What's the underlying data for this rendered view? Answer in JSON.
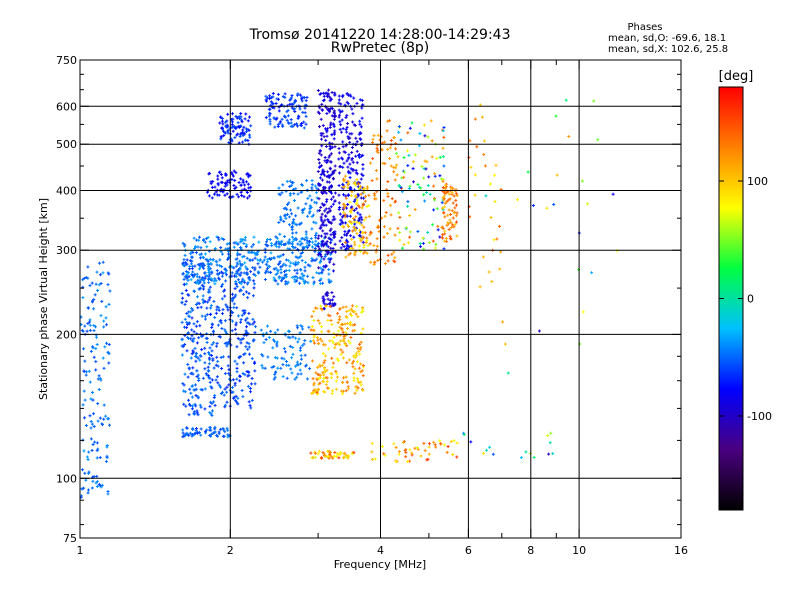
{
  "header": {
    "title_line1": "Tromsø 20141220 14:28:00-14:29:43",
    "title_line2": "RwPretec (8p)"
  },
  "phases": {
    "title": "Phases",
    "line_o": "mean, sd,O: -69.6, 18.1",
    "line_x": "mean, sd,X: 102.6, 25.8"
  },
  "colorbar": {
    "unit": "[deg]",
    "ticks": [
      {
        "value": 100,
        "label": "100"
      },
      {
        "value": 0,
        "label": "0"
      },
      {
        "value": -100,
        "label": "-100"
      }
    ],
    "range": [
      -180,
      180
    ],
    "colormap": [
      "#000000",
      "#4a0080",
      "#0000ff",
      "#00c0ff",
      "#00ff40",
      "#ffff00",
      "#ff8000",
      "#ff0000"
    ]
  },
  "chart_data": {
    "type": "scatter",
    "xlabel": "Frequency [MHz]",
    "ylabel": "Stationary phase Virtual Height [km]",
    "xscale": "log",
    "yscale": "log",
    "xlim": [
      1,
      16
    ],
    "ylim": [
      75,
      750
    ],
    "grid": true,
    "x_ticks": [
      {
        "value": 1,
        "label": "1"
      },
      {
        "value": 2,
        "label": "2"
      },
      {
        "value": 4,
        "label": "4"
      },
      {
        "value": 6,
        "label": "6"
      },
      {
        "value": 8,
        "label": "8"
      },
      {
        "value": 10,
        "label": "10"
      },
      {
        "value": 16,
        "label": "16"
      }
    ],
    "x_minor": [
      3,
      5,
      7,
      9
    ],
    "x_grid": [
      2,
      4,
      6,
      8,
      10
    ],
    "y_ticks": [
      {
        "value": 75,
        "label": "75"
      },
      {
        "value": 100,
        "label": "100"
      },
      {
        "value": 200,
        "label": "200"
      },
      {
        "value": 300,
        "label": "300"
      },
      {
        "value": 400,
        "label": "400"
      },
      {
        "value": 500,
        "label": "500"
      },
      {
        "value": 600,
        "label": "600"
      },
      {
        "value": 750,
        "label": "750"
      }
    ],
    "y_grid": [
      100,
      200,
      300,
      400,
      500,
      600
    ],
    "clusters": [
      {
        "f": [
          1.0,
          1.15
        ],
        "h": [
          90,
          290
        ],
        "phase": [
          -60,
          -35
        ],
        "n": 160
      },
      {
        "f": [
          1.6,
          1.85
        ],
        "h": [
          135,
          290
        ],
        "phase": [
          -70,
          -40
        ],
        "n": 260
      },
      {
        "f": [
          1.85,
          2.25
        ],
        "h": [
          140,
          280
        ],
        "phase": [
          -70,
          -45
        ],
        "n": 240
      },
      {
        "f": [
          1.6,
          2.0
        ],
        "h": [
          122,
          128
        ],
        "phase": [
          -65,
          -40
        ],
        "n": 60
      },
      {
        "f": [
          1.8,
          2.2
        ],
        "h": [
          385,
          440
        ],
        "phase": [
          -90,
          -70
        ],
        "n": 90
      },
      {
        "f": [
          1.9,
          2.2
        ],
        "h": [
          500,
          580
        ],
        "phase": [
          -80,
          -55
        ],
        "n": 90
      },
      {
        "f": [
          2.35,
          2.85
        ],
        "h": [
          540,
          640
        ],
        "phase": [
          -75,
          -50
        ],
        "n": 110
      },
      {
        "f": [
          2.3,
          2.9
        ],
        "h": [
          160,
          210
        ],
        "phase": [
          -55,
          -35
        ],
        "n": 90
      },
      {
        "f": [
          1.6,
          3.2
        ],
        "h": [
          255,
          320
        ],
        "phase": [
          -60,
          -30
        ],
        "n": 420
      },
      {
        "f": [
          2.5,
          3.0
        ],
        "h": [
          300,
          420
        ],
        "phase": [
          -55,
          -35
        ],
        "n": 120
      },
      {
        "f": [
          3.0,
          3.25
        ],
        "h": [
          270,
          650
        ],
        "phase": [
          -105,
          -80
        ],
        "n": 260
      },
      {
        "f": [
          3.3,
          3.7
        ],
        "h": [
          300,
          640
        ],
        "phase": [
          -100,
          -70
        ],
        "n": 220
      },
      {
        "f": [
          3.05,
          3.25
        ],
        "h": [
          225,
          245
        ],
        "phase": [
          -100,
          -85
        ],
        "n": 30
      },
      {
        "f": [
          3.35,
          3.8
        ],
        "h": [
          290,
          430
        ],
        "phase": [
          70,
          140
        ],
        "n": 110
      },
      {
        "f": [
          3.8,
          4.3
        ],
        "h": [
          280,
          560
        ],
        "phase": [
          110,
          150
        ],
        "n": 90
      },
      {
        "f": [
          4.3,
          5.4
        ],
        "h": [
          300,
          560
        ],
        "phase": [
          -100,
          150
        ],
        "n": 110
      },
      {
        "f": [
          5.3,
          5.7
        ],
        "h": [
          310,
          420
        ],
        "phase": [
          100,
          150
        ],
        "n": 80
      },
      {
        "f": [
          2.9,
          3.7
        ],
        "h": [
          150,
          230
        ],
        "phase": [
          70,
          140
        ],
        "n": 240
      },
      {
        "f": [
          2.9,
          3.6
        ],
        "h": [
          110,
          114
        ],
        "phase": [
          60,
          160
        ],
        "n": 50
      },
      {
        "f": [
          3.8,
          5.7
        ],
        "h": [
          108,
          120
        ],
        "phase": [
          70,
          160
        ],
        "n": 50
      },
      {
        "f": [
          5.5,
          9.0
        ],
        "h": [
          110,
          125
        ],
        "phase": [
          -110,
          100
        ],
        "n": 16
      },
      {
        "f": [
          6.0,
          7.0
        ],
        "h": [
          250,
          620
        ],
        "phase": [
          80,
          150
        ],
        "n": 30
      },
      {
        "f": [
          6.5,
          12.0
        ],
        "h": [
          160,
          620
        ],
        "phase": [
          -100,
          150
        ],
        "n": 25
      }
    ]
  }
}
